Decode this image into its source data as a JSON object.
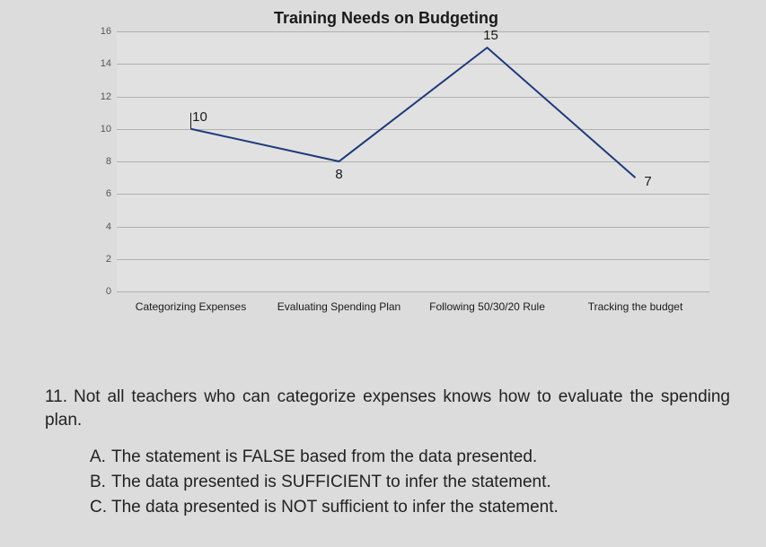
{
  "chart": {
    "type": "line",
    "title": "Training Needs on Budgeting",
    "title_fontsize": 18,
    "ylim": [
      0,
      16
    ],
    "ytick_step": 2,
    "yticks": [
      0,
      2,
      4,
      6,
      8,
      10,
      12,
      14,
      16
    ],
    "grid_color": "#b0b0b0",
    "background_color": "#dcdcdc",
    "line_color": "#1f3a7a",
    "line_width": 2,
    "categories": [
      "Categorizing Expenses",
      "Evaluating Spending Plan",
      "Following 50/30/20 Rule",
      "Tracking the budget"
    ],
    "values": [
      10,
      8,
      15,
      7
    ],
    "value_label_fontsize": 15,
    "axis_label_fontsize": 12,
    "axis_label_color": "#1a1a1a"
  },
  "question": {
    "number": "11.",
    "text": "Not all teachers who can categorize expenses knows how to evaluate the spending plan.",
    "options": [
      {
        "letter": "A.",
        "text": "The statement is FALSE based from the data presented."
      },
      {
        "letter": "B.",
        "text": "The data presented is SUFFICIENT to infer the statement."
      },
      {
        "letter": "C.",
        "text": "The data presented is NOT sufficient to infer the statement."
      }
    ]
  }
}
